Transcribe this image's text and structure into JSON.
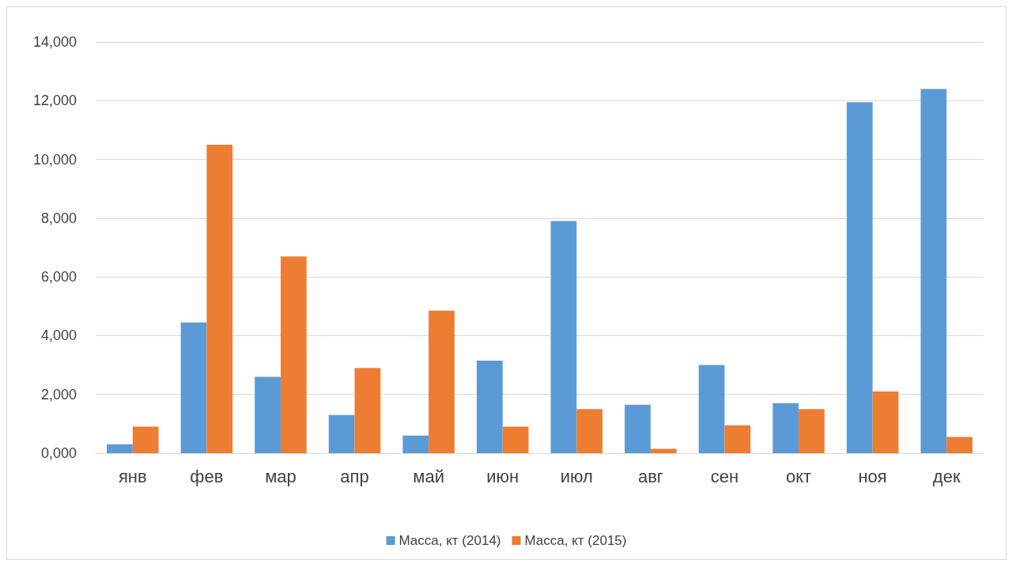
{
  "chart_data": {
    "type": "bar",
    "categories": [
      "янв",
      "фев",
      "мар",
      "апр",
      "май",
      "июн",
      "июл",
      "авг",
      "сен",
      "окт",
      "ноя",
      "дек"
    ],
    "series": [
      {
        "name": "Масса, кт (2014)",
        "color": "#5b9bd5",
        "values": [
          300,
          4450,
          2600,
          1300,
          600,
          3150,
          7900,
          1650,
          3000,
          1700,
          11950,
          12400
        ]
      },
      {
        "name": "Масса, кт (2015)",
        "color": "#ed7d31",
        "values": [
          900,
          10500,
          6700,
          2900,
          4850,
          900,
          1500,
          150,
          950,
          1500,
          2100,
          550
        ]
      }
    ],
    "ylim": [
      0,
      14000
    ],
    "yticks": [
      {
        "value": 0,
        "label": "0,000"
      },
      {
        "value": 2000,
        "label": "2,000"
      },
      {
        "value": 4000,
        "label": "4,000"
      },
      {
        "value": 6000,
        "label": "6,000"
      },
      {
        "value": 8000,
        "label": "8,000"
      },
      {
        "value": 10000,
        "label": "10,000"
      },
      {
        "value": 12000,
        "label": "12,000"
      },
      {
        "value": 14000,
        "label": "14,000"
      }
    ],
    "grid": "y",
    "legend": "bottom"
  }
}
